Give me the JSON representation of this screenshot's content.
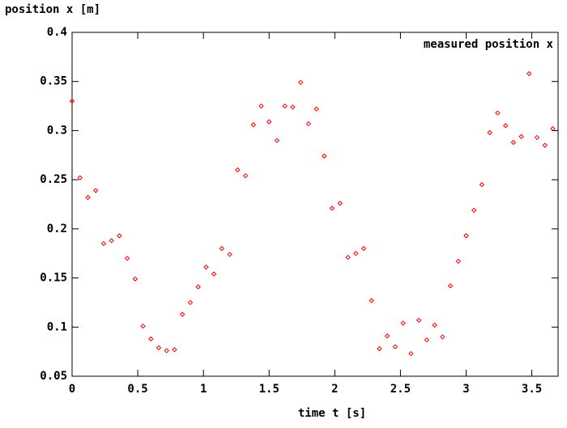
{
  "chart_data": {
    "type": "scatter",
    "title": "position x [m]",
    "x_label": "time t [s]",
    "legend_position": "top-right",
    "series": [
      {
        "name": "measured position x",
        "color": "#ff0000",
        "x": [
          0,
          0.06,
          0.12,
          0.18,
          0.24,
          0.3,
          0.36,
          0.42,
          0.48,
          0.54,
          0.6,
          0.66,
          0.72,
          0.78,
          0.84,
          0.9,
          0.96,
          1.02,
          1.08,
          1.14,
          1.2,
          1.26,
          1.32,
          1.38,
          1.44,
          1.5,
          1.56,
          1.62,
          1.68,
          1.74,
          1.8,
          1.86,
          1.92,
          1.98,
          2.04,
          2.1,
          2.16,
          2.22,
          2.28,
          2.34,
          2.4,
          2.46,
          2.52,
          2.58,
          2.64,
          2.7,
          2.76,
          2.82,
          2.88,
          2.94,
          3.0,
          3.06,
          3.12,
          3.18,
          3.24,
          3.3,
          3.36,
          3.42,
          3.48,
          3.54,
          3.6,
          3.66
        ],
        "values": [
          0.33,
          0.252,
          0.232,
          0.239,
          0.185,
          0.188,
          0.193,
          0.17,
          0.149,
          0.101,
          0.088,
          0.079,
          0.076,
          0.077,
          0.113,
          0.125,
          0.141,
          0.161,
          0.154,
          0.18,
          0.174,
          0.26,
          0.254,
          0.306,
          0.325,
          0.309,
          0.29,
          0.325,
          0.324,
          0.349,
          0.307,
          0.322,
          0.274,
          0.221,
          0.226,
          0.171,
          0.175,
          0.18,
          0.127,
          0.078,
          0.091,
          0.08,
          0.104,
          0.073,
          0.107,
          0.087,
          0.102,
          0.09,
          0.142,
          0.167,
          0.193,
          0.219,
          0.245,
          0.298,
          0.318,
          0.305,
          0.288,
          0.294,
          0.358,
          0.293,
          0.285,
          0.302
        ]
      }
    ],
    "xlim": [
      0,
      3.7
    ],
    "xticks": [
      0,
      0.5,
      1,
      1.5,
      2,
      2.5,
      3,
      3.5
    ],
    "ylim": [
      0.05,
      0.4
    ],
    "yticks": [
      0.05,
      0.1,
      0.15,
      0.2,
      0.25,
      0.3,
      0.35,
      0.4
    ],
    "grid": false
  }
}
